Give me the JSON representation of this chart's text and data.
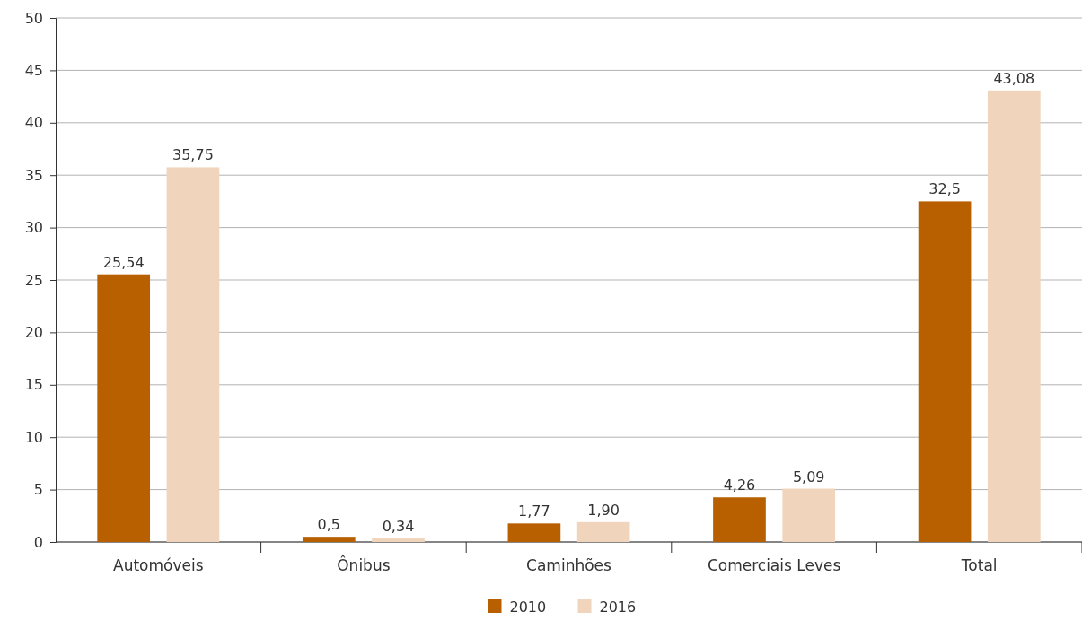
{
  "chart_data": {
    "type": "bar",
    "categories": [
      "Automóveis",
      "Ônibus",
      "Caminhões",
      "Comerciais Leves",
      "Total"
    ],
    "series": [
      {
        "name": "2010",
        "color": "#b86000",
        "values": [
          25.54,
          0.5,
          1.77,
          4.26,
          32.5
        ],
        "value_labels": [
          "25,54",
          "0,5",
          "1,77",
          "4,26",
          "32,5"
        ]
      },
      {
        "name": "2016",
        "color": "#f0d5bc",
        "values": [
          35.75,
          0.34,
          1.9,
          5.09,
          43.08
        ],
        "value_labels": [
          "35,75",
          "0,34",
          "1,90",
          "5,09",
          "43,08"
        ]
      }
    ],
    "ylim": [
      0,
      50
    ],
    "yticks": [
      0,
      5,
      10,
      15,
      20,
      25,
      30,
      35,
      40,
      45,
      50
    ],
    "grid": "y",
    "legend": "bottom"
  }
}
